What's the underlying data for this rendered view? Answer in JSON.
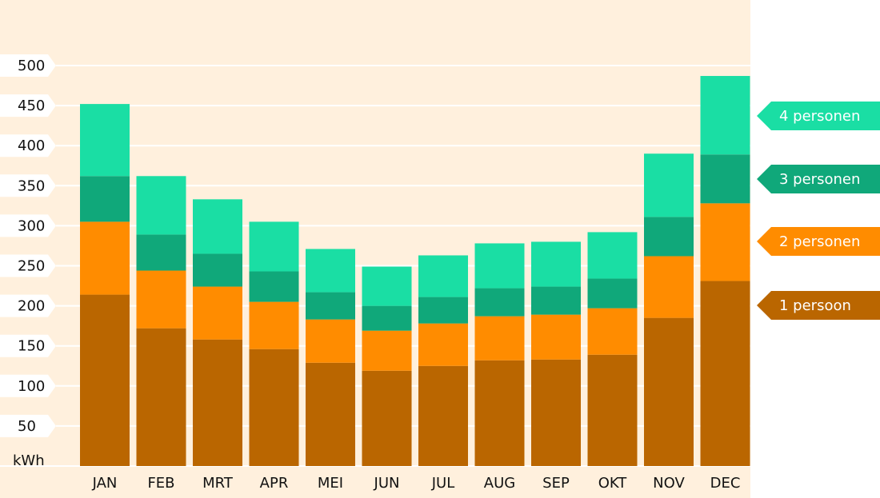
{
  "chart_data": {
    "type": "bar",
    "stacked": true,
    "ylabel": "kWh",
    "ylim": [
      0,
      500
    ],
    "yticks": [
      50,
      100,
      150,
      200,
      250,
      300,
      350,
      400,
      450,
      500
    ],
    "grid": true,
    "legend_position": "right",
    "categories": [
      "JAN",
      "FEB",
      "MRT",
      "APR",
      "MEI",
      "JUN",
      "JUL",
      "AUG",
      "SEP",
      "OKT",
      "NOV",
      "DEC"
    ],
    "series": [
      {
        "name": "1 persoon",
        "color": "#BA6600",
        "values": [
          214,
          172,
          158,
          146,
          129,
          119,
          125,
          132,
          133,
          139,
          185,
          231
        ]
      },
      {
        "name": "2 personen",
        "color": "#FF8C00",
        "values": [
          91,
          72,
          66,
          59,
          54,
          50,
          53,
          55,
          56,
          58,
          77,
          97
        ]
      },
      {
        "name": "3 personen",
        "color": "#10A87A",
        "values": [
          57,
          45,
          41,
          38,
          34,
          31,
          33,
          35,
          35,
          37,
          49,
          61
        ]
      },
      {
        "name": "4 personen",
        "color": "#1ADEA4",
        "values": [
          90,
          73,
          68,
          62,
          54,
          49,
          52,
          56,
          56,
          58,
          79,
          98
        ]
      }
    ],
    "plot_background": "#FFF0DD"
  }
}
